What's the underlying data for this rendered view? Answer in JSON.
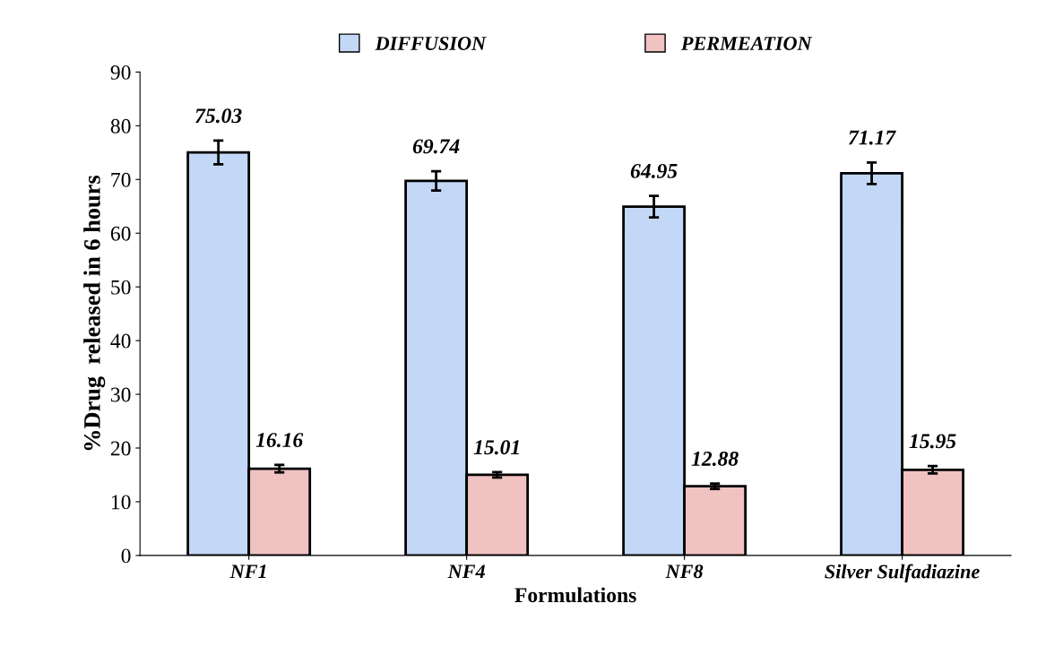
{
  "chart_data": {
    "type": "bar",
    "xlabel": "Formulations",
    "ylabel": "%Drug  released in 6 hours",
    "categories": [
      "NF1",
      "NF4",
      "NF8",
      "Silver Sulfadiazine"
    ],
    "series": [
      {
        "name": "DIFFUSION",
        "color": "#c3d8f7",
        "values": [
          75.03,
          69.74,
          64.95,
          71.17
        ],
        "errors": [
          2.2,
          1.8,
          2.0,
          2.0
        ]
      },
      {
        "name": "PERMEATION",
        "color": "#f1c2c2",
        "values": [
          16.16,
          15.01,
          12.88,
          15.95
        ],
        "errors": [
          0.7,
          0.5,
          0.5,
          0.7
        ]
      }
    ],
    "ylim": [
      0,
      90
    ],
    "yticks": [
      0,
      10,
      20,
      30,
      40,
      50,
      60,
      70,
      80,
      90
    ],
    "grid": false,
    "legend": "top",
    "data_labels": true
  }
}
